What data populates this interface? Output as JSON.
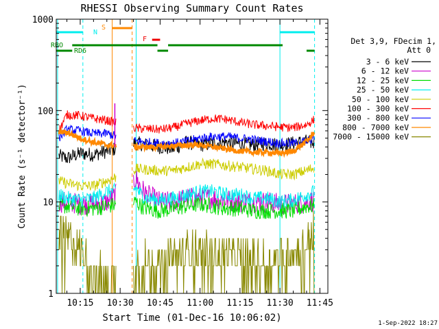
{
  "chart_data": {
    "type": "line",
    "title": "RHESSI Observing Summary Count Rates",
    "xlabel": "Start Time (01-Dec-16 10:06:02)",
    "ylabel": "Count Rate (s⁻¹ detector⁻¹)",
    "yscale": "log",
    "ylim": [
      1,
      1000
    ],
    "xlim_minutes": [
      606,
      708
    ],
    "x_ticks": [
      {
        "label": "10:15",
        "minutes": 615
      },
      {
        "label": "10:30",
        "minutes": 630
      },
      {
        "label": "10:45",
        "minutes": 645
      },
      {
        "label": "11:00",
        "minutes": 660
      },
      {
        "label": "11:15",
        "minutes": 675
      },
      {
        "label": "11:30",
        "minutes": 690
      },
      {
        "label": "11:45",
        "minutes": 705
      }
    ],
    "y_ticks": [
      {
        "label": "1",
        "value": 1
      },
      {
        "label": "10",
        "value": 10
      },
      {
        "label": "100",
        "value": 100
      },
      {
        "label": "1000",
        "value": 1000
      }
    ],
    "legend_header": [
      "Det 3,9, FDecim 1,",
      "Att 0"
    ],
    "legend_position": "right",
    "series": [
      {
        "name": "3 - 6 keV",
        "color": "#000000",
        "points": [
          [
            607,
            32
          ],
          [
            610,
            30
          ],
          [
            615,
            34
          ],
          [
            620,
            33
          ],
          [
            625,
            36
          ],
          [
            636,
            44
          ],
          [
            645,
            40
          ],
          [
            650,
            38
          ],
          [
            655,
            45
          ],
          [
            660,
            42
          ],
          [
            665,
            44
          ],
          [
            670,
            45
          ],
          [
            675,
            43
          ],
          [
            680,
            42
          ],
          [
            685,
            44
          ],
          [
            690,
            42
          ],
          [
            695,
            44
          ],
          [
            700,
            46
          ],
          [
            703,
            44
          ]
        ]
      },
      {
        "name": "6 - 12 keV",
        "color": "#cc00cc",
        "points": [
          [
            607,
            10
          ],
          [
            610,
            10
          ],
          [
            615,
            9.5
          ],
          [
            620,
            9.5
          ],
          [
            625,
            10
          ],
          [
            636,
            18
          ],
          [
            638,
            14
          ],
          [
            640,
            12
          ],
          [
            645,
            10
          ],
          [
            650,
            10
          ],
          [
            655,
            11
          ],
          [
            660,
            11
          ],
          [
            665,
            11
          ],
          [
            670,
            10.5
          ],
          [
            675,
            10
          ],
          [
            680,
            10
          ],
          [
            685,
            10
          ],
          [
            690,
            9.5
          ],
          [
            695,
            9.5
          ],
          [
            700,
            10
          ],
          [
            703,
            10.5
          ]
        ]
      },
      {
        "name": "12 - 25 keV",
        "color": "#00dd00",
        "points": [
          [
            607,
            9
          ],
          [
            610,
            9
          ],
          [
            615,
            8.5
          ],
          [
            620,
            8.5
          ],
          [
            625,
            9
          ],
          [
            636,
            10
          ],
          [
            638,
            9
          ],
          [
            640,
            8.5
          ],
          [
            645,
            8
          ],
          [
            650,
            8.5
          ],
          [
            655,
            9
          ],
          [
            660,
            9.5
          ],
          [
            665,
            9
          ],
          [
            670,
            8.5
          ],
          [
            675,
            8.5
          ],
          [
            680,
            8
          ],
          [
            685,
            8
          ],
          [
            690,
            8
          ],
          [
            695,
            8
          ],
          [
            700,
            9
          ],
          [
            703,
            9
          ]
        ]
      },
      {
        "name": "25 - 50 keV",
        "color": "#00eeee",
        "points": [
          [
            607,
            12
          ],
          [
            610,
            11
          ],
          [
            615,
            10.5
          ],
          [
            620,
            11
          ],
          [
            625,
            13
          ],
          [
            636,
            14
          ],
          [
            638,
            12
          ],
          [
            640,
            11
          ],
          [
            645,
            10.5
          ],
          [
            650,
            11
          ],
          [
            655,
            12
          ],
          [
            660,
            13
          ],
          [
            665,
            13
          ],
          [
            670,
            12
          ],
          [
            675,
            12
          ],
          [
            680,
            11
          ],
          [
            685,
            11
          ],
          [
            690,
            10
          ],
          [
            695,
            10.5
          ],
          [
            700,
            12
          ],
          [
            703,
            13
          ]
        ]
      },
      {
        "name": "50 - 100 keV",
        "color": "#cccc00",
        "points": [
          [
            607,
            17
          ],
          [
            610,
            16
          ],
          [
            615,
            15
          ],
          [
            620,
            15
          ],
          [
            625,
            17
          ],
          [
            636,
            23
          ],
          [
            645,
            22
          ],
          [
            650,
            22
          ],
          [
            655,
            24
          ],
          [
            660,
            26
          ],
          [
            665,
            26
          ],
          [
            670,
            25
          ],
          [
            675,
            24
          ],
          [
            680,
            23
          ],
          [
            685,
            22
          ],
          [
            690,
            20
          ],
          [
            695,
            20
          ],
          [
            700,
            22
          ],
          [
            703,
            24
          ]
        ]
      },
      {
        "name": "100 - 300 keV",
        "color": "#ff0000",
        "points": [
          [
            607,
            60
          ],
          [
            610,
            90
          ],
          [
            615,
            88
          ],
          [
            620,
            82
          ],
          [
            625,
            78
          ],
          [
            636,
            64
          ],
          [
            645,
            62
          ],
          [
            650,
            65
          ],
          [
            655,
            72
          ],
          [
            660,
            78
          ],
          [
            665,
            82
          ],
          [
            670,
            80
          ],
          [
            675,
            74
          ],
          [
            680,
            70
          ],
          [
            685,
            68
          ],
          [
            690,
            66
          ],
          [
            695,
            65
          ],
          [
            700,
            70
          ],
          [
            703,
            80
          ]
        ]
      },
      {
        "name": "300 - 800 keV",
        "color": "#0000ff",
        "points": [
          [
            607,
            50
          ],
          [
            610,
            62
          ],
          [
            615,
            60
          ],
          [
            620,
            56
          ],
          [
            625,
            56
          ],
          [
            636,
            46
          ],
          [
            645,
            44
          ],
          [
            650,
            44
          ],
          [
            655,
            46
          ],
          [
            660,
            50
          ],
          [
            665,
            52
          ],
          [
            670,
            52
          ],
          [
            675,
            50
          ],
          [
            680,
            48
          ],
          [
            685,
            46
          ],
          [
            690,
            44
          ],
          [
            695,
            44
          ],
          [
            700,
            46
          ],
          [
            703,
            50
          ]
        ]
      },
      {
        "name": "800 - 7000 keV",
        "color": "#ff8800",
        "points": [
          [
            607,
            58
          ],
          [
            610,
            58
          ],
          [
            615,
            50
          ],
          [
            620,
            45
          ],
          [
            625,
            42
          ],
          [
            636,
            40
          ],
          [
            645,
            40
          ],
          [
            650,
            41
          ],
          [
            655,
            42
          ],
          [
            660,
            42
          ],
          [
            665,
            40
          ],
          [
            670,
            38
          ],
          [
            675,
            36
          ],
          [
            680,
            35
          ],
          [
            685,
            35
          ],
          [
            690,
            34
          ],
          [
            695,
            36
          ],
          [
            700,
            46
          ],
          [
            703,
            58
          ]
        ]
      },
      {
        "name": "7000 - 15000 keV",
        "color": "#888800",
        "points": [
          [
            607,
            4.5
          ],
          [
            610,
            4
          ],
          [
            615,
            3
          ],
          [
            620,
            1.8
          ],
          [
            625,
            1.4
          ],
          [
            636,
            2
          ],
          [
            640,
            2.2
          ],
          [
            645,
            2
          ],
          [
            650,
            2.5
          ],
          [
            655,
            3
          ],
          [
            660,
            3
          ],
          [
            665,
            2.8
          ],
          [
            670,
            2.6
          ],
          [
            675,
            2.5
          ],
          [
            680,
            2.3
          ],
          [
            685,
            2.3
          ],
          [
            690,
            2.5
          ],
          [
            695,
            2.8
          ],
          [
            700,
            3.5
          ],
          [
            703,
            5
          ]
        ]
      }
    ],
    "gaps_minutes": [
      [
        628.5,
        635
      ]
    ],
    "spike": {
      "series": "6 - 12 keV",
      "time": 628,
      "value": 120
    },
    "flags": [
      {
        "label": "N",
        "color": "#00eeee",
        "segments": [
          [
            606,
            616
          ],
          [
            690,
            703
          ]
        ]
      },
      {
        "label": "S",
        "color": "#ff8800",
        "segments": [
          [
            627,
            634.5
          ]
        ]
      },
      {
        "label": "F",
        "color": "#ee0000",
        "segments": [
          [
            642,
            645
          ]
        ]
      },
      {
        "label": "RBO",
        "color": "#008800",
        "segments": [
          [
            612,
            644
          ],
          [
            648,
            691
          ]
        ]
      },
      {
        "label": "RD6",
        "color": "#008800",
        "segments": [
          [
            606,
            612
          ],
          [
            644,
            648
          ],
          [
            700,
            703
          ]
        ]
      }
    ],
    "vertical_markers": [
      {
        "minutes": 606.5,
        "color": "#00eeee",
        "style": "solid"
      },
      {
        "minutes": 616,
        "color": "#00eeee",
        "style": "dashed"
      },
      {
        "minutes": 627,
        "color": "#ff8800",
        "style": "solid"
      },
      {
        "minutes": 634.5,
        "color": "#ff8800",
        "style": "dashed"
      },
      {
        "minutes": 636,
        "color": "#00eeee",
        "style": "solid"
      },
      {
        "minutes": 690,
        "color": "#00eeee",
        "style": "solid"
      },
      {
        "minutes": 703,
        "color": "#00eeee",
        "style": "dashed"
      }
    ]
  },
  "footer": {
    "timestamp": "1-Sep-2022 18:27"
  }
}
